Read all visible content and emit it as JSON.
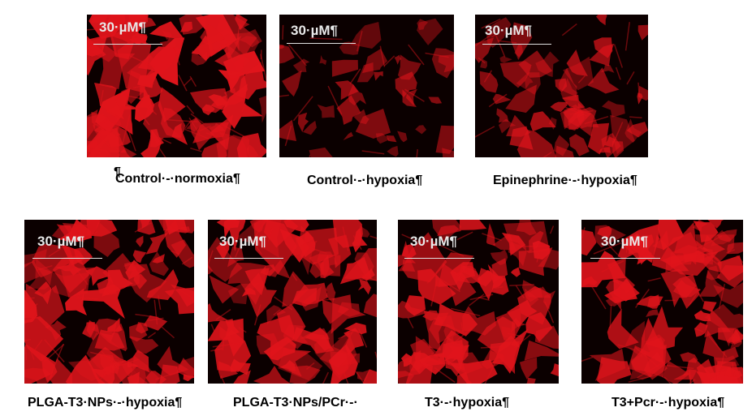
{
  "scale_bar_label": "30·µM¶",
  "stray_mark": "¶",
  "colors": {
    "stain": "#e0141b",
    "background": "#0b0000"
  },
  "panels": [
    {
      "id": "control-normoxia",
      "caption": "Control·-·normoxia¶",
      "density": 1.0
    },
    {
      "id": "control-hypoxia",
      "caption": "Control·-·hypoxia¶",
      "density": 0.35
    },
    {
      "id": "epinephrine-hypoxia",
      "caption": "Epinephrine·-·hypoxia¶",
      "density": 0.55
    },
    {
      "id": "plga-t3-nps-hypoxia",
      "caption": "PLGA-T3·NPs·-·hypoxia¶",
      "density": 0.95
    },
    {
      "id": "plga-t3-nps-pcr",
      "caption": "PLGA-T3·NPs/PCr·-·",
      "density": 0.9
    },
    {
      "id": "t3-hypoxia",
      "caption": "T3·-·hypoxia¶",
      "density": 0.85
    },
    {
      "id": "t3-pcr-hypoxia",
      "caption": "T3+Pcr·-·hypoxia¶",
      "density": 0.9
    }
  ]
}
